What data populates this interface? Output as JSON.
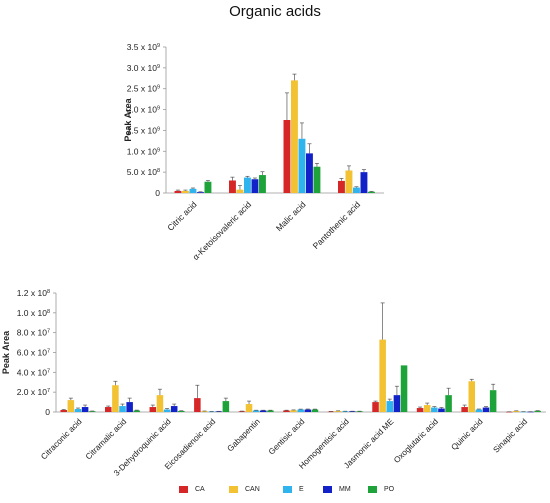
{
  "title": "Organic acids",
  "legend": [
    {
      "label": "CA",
      "color": "#d62728"
    },
    {
      "label": "CAN",
      "color": "#f2c232"
    },
    {
      "label": "E",
      "color": "#2fb4ee"
    },
    {
      "label": "MM",
      "color": "#1222c8"
    },
    {
      "label": "PO",
      "color": "#1ea33a"
    }
  ],
  "chart_data": [
    {
      "type": "bar",
      "ylabel": "Peak Area",
      "ylim": [
        0,
        3500000000
      ],
      "yticks": [
        0,
        500000000,
        1000000000,
        1500000000,
        2000000000,
        2500000000,
        3000000000,
        3500000000
      ],
      "ytick_labels": [
        "0",
        "5.0 x 10⁸",
        "1.0 x 10⁹",
        "1.5 x 10⁹",
        "2.0 x 10⁹",
        "2.5 x 10⁹",
        "3.0 x 10⁹",
        "3.5 x 10⁹"
      ],
      "categories": [
        "Citric acid",
        "α-Ketoisovaleric acid",
        "Malic acid",
        "Pantothenic acid"
      ],
      "series": [
        {
          "name": "CA",
          "values": [
            50000000,
            300000000,
            1750000000,
            290000000
          ],
          "errors": [
            20000000,
            80000000,
            650000000,
            60000000
          ]
        },
        {
          "name": "CAN",
          "values": [
            50000000,
            80000000,
            2700000000,
            540000000
          ],
          "errors": [
            20000000,
            100000000,
            150000000,
            110000000
          ]
        },
        {
          "name": "E",
          "values": [
            100000000,
            370000000,
            1300000000,
            130000000
          ],
          "errors": [
            20000000,
            30000000,
            380000000,
            20000000
          ]
        },
        {
          "name": "MM",
          "values": [
            20000000,
            330000000,
            950000000,
            500000000
          ],
          "errors": [
            10000000,
            30000000,
            230000000,
            60000000
          ]
        },
        {
          "name": "PO",
          "values": [
            270000000,
            430000000,
            630000000,
            30000000
          ],
          "errors": [
            30000000,
            80000000,
            80000000,
            10000000
          ]
        }
      ]
    },
    {
      "type": "bar",
      "ylabel": "Peak Area",
      "ylim": [
        0,
        120000000
      ],
      "yticks": [
        0,
        20000000,
        40000000,
        60000000,
        80000000,
        100000000,
        120000000
      ],
      "ytick_labels": [
        "0",
        "2.0 x 10⁷",
        "4.0 x 10⁷",
        "6.0 x 10⁷",
        "8.0 x 10⁷",
        "1.0 x 10⁸",
        "1.2 x 10⁸"
      ],
      "categories": [
        "Citraconic acid",
        "Citramalic acid",
        "3-Dehydroquinic acid",
        "Eicosadienoic acid",
        "Gabapentin",
        "Gentisic acid",
        "Homogentisic acid",
        "Jasmonic acid ME",
        "Oxoglutaric acid",
        "Quinic acid",
        "Sinapic acid"
      ],
      "series": [
        {
          "name": "CA",
          "values": [
            2000000,
            5000000,
            5000000,
            14000000,
            700000,
            1500000,
            500000,
            10000000,
            4000000,
            5000000,
            200000
          ],
          "errors": [
            500000,
            1000000,
            2000000,
            13000000,
            200000,
            300000,
            100000,
            1000000,
            1000000,
            2000000,
            50000
          ]
        },
        {
          "name": "CAN",
          "values": [
            12000000,
            27000000,
            17000000,
            800000,
            8000000,
            1800000,
            1000000,
            73000000,
            7000000,
            31000000,
            1000000
          ],
          "errors": [
            2000000,
            4000000,
            6000000,
            200000,
            3000000,
            300000,
            200000,
            37000000,
            2000000,
            2000000,
            200000
          ]
        },
        {
          "name": "E",
          "values": [
            3000000,
            6000000,
            2500000,
            500000,
            1500000,
            2500000,
            700000,
            11000000,
            4500000,
            2500000,
            300000
          ],
          "errors": [
            1000000,
            2000000,
            1000000,
            100000,
            300000,
            400000,
            100000,
            2000000,
            1000000,
            500000,
            50000
          ]
        },
        {
          "name": "MM",
          "values": [
            5000000,
            10000000,
            6000000,
            600000,
            1500000,
            2500000,
            700000,
            17000000,
            3500000,
            4500000,
            300000
          ],
          "errors": [
            2000000,
            4000000,
            2000000,
            100000,
            300000,
            500000,
            100000,
            9000000,
            1000000,
            1000000,
            50000
          ]
        },
        {
          "name": "PO",
          "values": [
            800000,
            1500000,
            1000000,
            11000000,
            1500000,
            2500000,
            700000,
            47000000,
            17000000,
            22000000,
            1200000
          ],
          "errors": [
            200000,
            400000,
            300000,
            3000000,
            300000,
            400000,
            100000,
            0,
            7000000,
            6000000,
            200000
          ]
        }
      ]
    }
  ]
}
